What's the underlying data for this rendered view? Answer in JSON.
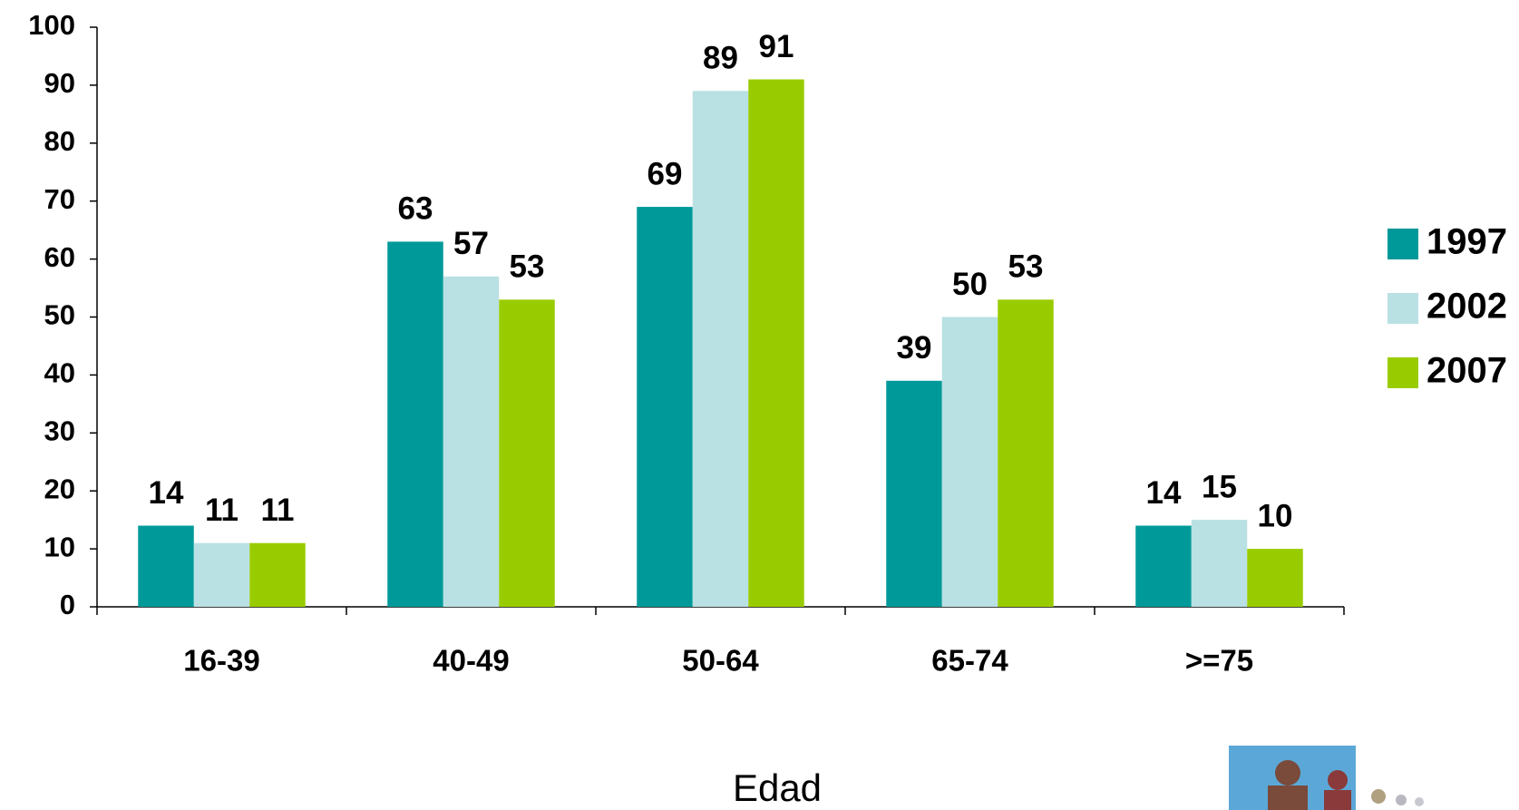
{
  "chart_data": {
    "type": "bar",
    "x_label": "Edad",
    "categories": [
      "16-39",
      "40-49",
      "50-64",
      "65-74",
      ">=75"
    ],
    "series": [
      {
        "name": "1997",
        "color": "#009999",
        "values": [
          14,
          63,
          69,
          39,
          14
        ]
      },
      {
        "name": "2002",
        "color": "#b9e0e3",
        "values": [
          11,
          57,
          89,
          50,
          15
        ]
      },
      {
        "name": "2007",
        "color": "#99cc00",
        "values": [
          11,
          53,
          91,
          53,
          10
        ]
      }
    ],
    "ylim": [
      0,
      100
    ],
    "yticks": [
      0,
      10,
      20,
      30,
      40,
      50,
      60,
      70,
      80,
      90,
      100
    ],
    "grid": false,
    "legend": "right"
  }
}
